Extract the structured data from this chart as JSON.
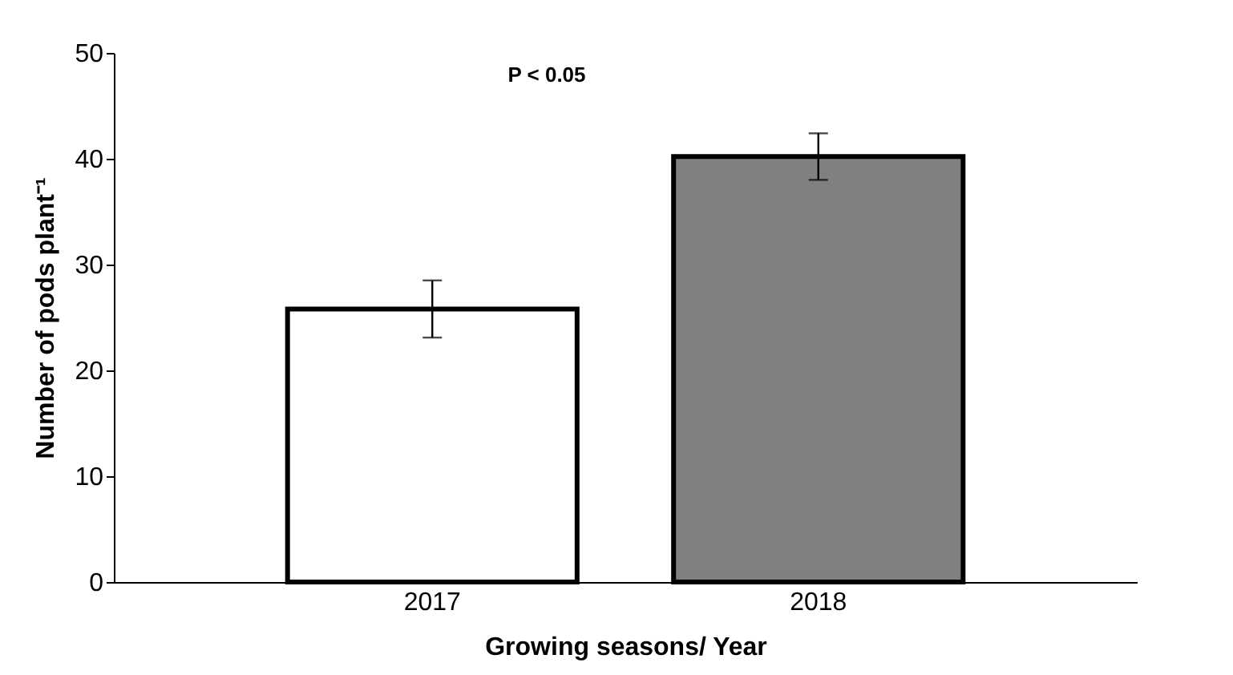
{
  "chart_data": {
    "type": "bar",
    "categories": [
      "2017",
      "2018"
    ],
    "values": [
      25.8,
      40.2
    ],
    "errors": [
      2.7,
      2.2
    ],
    "colors": [
      "#ffffff",
      "#808080"
    ],
    "xlabel": "Growing seasons/ Year",
    "ylabel": "Number of pods plant⁻¹",
    "ylim": [
      0,
      50
    ],
    "yticks": [
      0,
      10,
      20,
      30,
      40,
      50
    ],
    "annotations": [
      "P < 0.05"
    ],
    "grid": false
  }
}
